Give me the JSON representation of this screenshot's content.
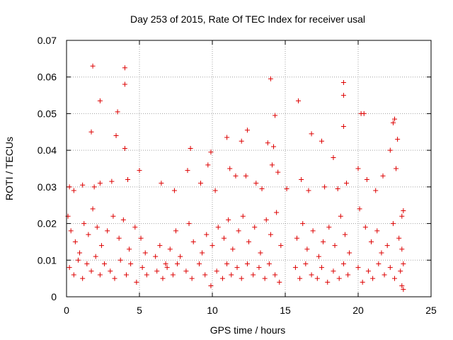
{
  "chart_data": {
    "type": "scatter",
    "title": "Day 253 of 2015, Rate Of TEC Index for receiver usal",
    "xlabel": "GPS time / hours",
    "ylabel": "ROTI / TECUs",
    "xlim": [
      0,
      25
    ],
    "ylim": [
      0,
      0.07
    ],
    "xticks": [
      0,
      5,
      10,
      15,
      20,
      25
    ],
    "xtick_labels": [
      "0",
      "5",
      "10",
      "15",
      "20",
      "25"
    ],
    "yticks": [
      0,
      0.01,
      0.02,
      0.03,
      0.04,
      0.05,
      0.06,
      0.07
    ],
    "ytick_labels": [
      "0",
      "0.01",
      "0.02",
      "0.03",
      "0.04",
      "0.05",
      "0.06",
      "0.07"
    ],
    "grid": true,
    "marker": "+",
    "color": "#dd0000",
    "points": [
      [
        1.8,
        0.063
      ],
      [
        4.0,
        0.0625
      ],
      [
        4.0,
        0.058
      ],
      [
        14.0,
        0.0595
      ],
      [
        19.0,
        0.0585
      ],
      [
        19.0,
        0.055
      ],
      [
        2.3,
        0.0535
      ],
      [
        15.9,
        0.0535
      ],
      [
        3.5,
        0.0505
      ],
      [
        20.2,
        0.05
      ],
      [
        20.4,
        0.05
      ],
      [
        14.3,
        0.0495
      ],
      [
        22.5,
        0.0485
      ],
      [
        22.4,
        0.0475
      ],
      [
        19.0,
        0.0465
      ],
      [
        1.7,
        0.045
      ],
      [
        12.4,
        0.0455
      ],
      [
        16.8,
        0.0445
      ],
      [
        3.4,
        0.044
      ],
      [
        22.7,
        0.043
      ],
      [
        17.5,
        0.0425
      ],
      [
        12.0,
        0.0425
      ],
      [
        13.8,
        0.042
      ],
      [
        14.2,
        0.041
      ],
      [
        9.9,
        0.0395
      ],
      [
        8.5,
        0.0405
      ],
      [
        4.0,
        0.0405
      ],
      [
        18.3,
        0.038
      ],
      [
        22.2,
        0.04
      ],
      [
        11.0,
        0.0435
      ],
      [
        0.2,
        0.03
      ],
      [
        0.5,
        0.029
      ],
      [
        1.1,
        0.0305
      ],
      [
        1.9,
        0.03
      ],
      [
        2.3,
        0.031
      ],
      [
        3.1,
        0.0315
      ],
      [
        4.2,
        0.032
      ],
      [
        5.0,
        0.0345
      ],
      [
        6.5,
        0.031
      ],
      [
        7.4,
        0.029
      ],
      [
        8.3,
        0.0345
      ],
      [
        9.2,
        0.031
      ],
      [
        9.7,
        0.036
      ],
      [
        10.2,
        0.029
      ],
      [
        11.2,
        0.035
      ],
      [
        11.6,
        0.033
      ],
      [
        12.3,
        0.033
      ],
      [
        13.0,
        0.031
      ],
      [
        13.4,
        0.0295
      ],
      [
        14.1,
        0.036
      ],
      [
        14.5,
        0.034
      ],
      [
        15.1,
        0.0295
      ],
      [
        16.1,
        0.032
      ],
      [
        16.6,
        0.029
      ],
      [
        17.7,
        0.03
      ],
      [
        18.6,
        0.0295
      ],
      [
        19.2,
        0.031
      ],
      [
        20.0,
        0.035
      ],
      [
        20.6,
        0.032
      ],
      [
        21.2,
        0.029
      ],
      [
        21.7,
        0.033
      ],
      [
        22.6,
        0.035
      ],
      [
        23.1,
        0.0235
      ],
      [
        23.0,
        0.022
      ],
      [
        0.1,
        0.022
      ],
      [
        0.3,
        0.018
      ],
      [
        0.6,
        0.015
      ],
      [
        0.9,
        0.012
      ],
      [
        1.2,
        0.02
      ],
      [
        1.5,
        0.017
      ],
      [
        1.8,
        0.024
      ],
      [
        2.1,
        0.019
      ],
      [
        2.4,
        0.014
      ],
      [
        2.8,
        0.018
      ],
      [
        3.2,
        0.022
      ],
      [
        3.6,
        0.016
      ],
      [
        3.9,
        0.021
      ],
      [
        4.3,
        0.013
      ],
      [
        4.7,
        0.019
      ],
      [
        5.1,
        0.016
      ],
      [
        5.4,
        0.012
      ],
      [
        6.1,
        0.011
      ],
      [
        6.4,
        0.014
      ],
      [
        6.8,
        0.009
      ],
      [
        7.1,
        0.013
      ],
      [
        7.5,
        0.018
      ],
      [
        7.8,
        0.011
      ],
      [
        8.4,
        0.02
      ],
      [
        8.7,
        0.015
      ],
      [
        9.3,
        0.012
      ],
      [
        9.6,
        0.017
      ],
      [
        10.0,
        0.014
      ],
      [
        10.4,
        0.019
      ],
      [
        10.8,
        0.016
      ],
      [
        11.1,
        0.021
      ],
      [
        11.4,
        0.013
      ],
      [
        11.8,
        0.018
      ],
      [
        12.1,
        0.022
      ],
      [
        12.5,
        0.015
      ],
      [
        12.9,
        0.019
      ],
      [
        13.3,
        0.012
      ],
      [
        13.7,
        0.021
      ],
      [
        14.0,
        0.017
      ],
      [
        14.4,
        0.023
      ],
      [
        14.7,
        0.014
      ],
      [
        15.8,
        0.016
      ],
      [
        16.2,
        0.02
      ],
      [
        16.5,
        0.013
      ],
      [
        16.9,
        0.018
      ],
      [
        17.3,
        0.011
      ],
      [
        17.6,
        0.015
      ],
      [
        18.0,
        0.019
      ],
      [
        18.4,
        0.014
      ],
      [
        18.8,
        0.022
      ],
      [
        19.1,
        0.017
      ],
      [
        19.4,
        0.012
      ],
      [
        20.1,
        0.024
      ],
      [
        20.5,
        0.019
      ],
      [
        20.9,
        0.015
      ],
      [
        21.3,
        0.018
      ],
      [
        21.6,
        0.012
      ],
      [
        22.0,
        0.014
      ],
      [
        22.4,
        0.02
      ],
      [
        22.8,
        0.016
      ],
      [
        23.0,
        0.013
      ],
      [
        23.1,
        0.009
      ],
      [
        0.2,
        0.008
      ],
      [
        0.5,
        0.006
      ],
      [
        0.8,
        0.01
      ],
      [
        1.1,
        0.005
      ],
      [
        1.4,
        0.009
      ],
      [
        1.7,
        0.007
      ],
      [
        2.0,
        0.011
      ],
      [
        2.3,
        0.006
      ],
      [
        2.6,
        0.009
      ],
      [
        3.0,
        0.007
      ],
      [
        3.3,
        0.005
      ],
      [
        3.7,
        0.01
      ],
      [
        4.1,
        0.006
      ],
      [
        4.4,
        0.009
      ],
      [
        4.8,
        0.004
      ],
      [
        5.2,
        0.008
      ],
      [
        5.5,
        0.006
      ],
      [
        6.2,
        0.007
      ],
      [
        6.6,
        0.005
      ],
      [
        6.9,
        0.008
      ],
      [
        7.3,
        0.006
      ],
      [
        7.6,
        0.009
      ],
      [
        8.2,
        0.007
      ],
      [
        8.6,
        0.005
      ],
      [
        9.1,
        0.009
      ],
      [
        9.5,
        0.006
      ],
      [
        9.9,
        0.003
      ],
      [
        10.3,
        0.007
      ],
      [
        10.7,
        0.005
      ],
      [
        11.0,
        0.009
      ],
      [
        11.3,
        0.006
      ],
      [
        11.7,
        0.008
      ],
      [
        12.0,
        0.005
      ],
      [
        12.4,
        0.009
      ],
      [
        12.8,
        0.006
      ],
      [
        13.2,
        0.008
      ],
      [
        13.6,
        0.005
      ],
      [
        13.9,
        0.009
      ],
      [
        14.3,
        0.006
      ],
      [
        14.6,
        0.004
      ],
      [
        15.7,
        0.008
      ],
      [
        16.0,
        0.005
      ],
      [
        16.4,
        0.009
      ],
      [
        16.8,
        0.006
      ],
      [
        17.2,
        0.005
      ],
      [
        17.5,
        0.008
      ],
      [
        17.9,
        0.004
      ],
      [
        18.3,
        0.007
      ],
      [
        18.7,
        0.005
      ],
      [
        19.0,
        0.009
      ],
      [
        19.3,
        0.006
      ],
      [
        20.0,
        0.008
      ],
      [
        20.3,
        0.004
      ],
      [
        20.7,
        0.007
      ],
      [
        21.0,
        0.005
      ],
      [
        21.4,
        0.009
      ],
      [
        21.8,
        0.006
      ],
      [
        22.2,
        0.008
      ],
      [
        22.5,
        0.005
      ],
      [
        22.9,
        0.007
      ],
      [
        23.0,
        0.003
      ],
      [
        23.1,
        0.002
      ]
    ]
  }
}
